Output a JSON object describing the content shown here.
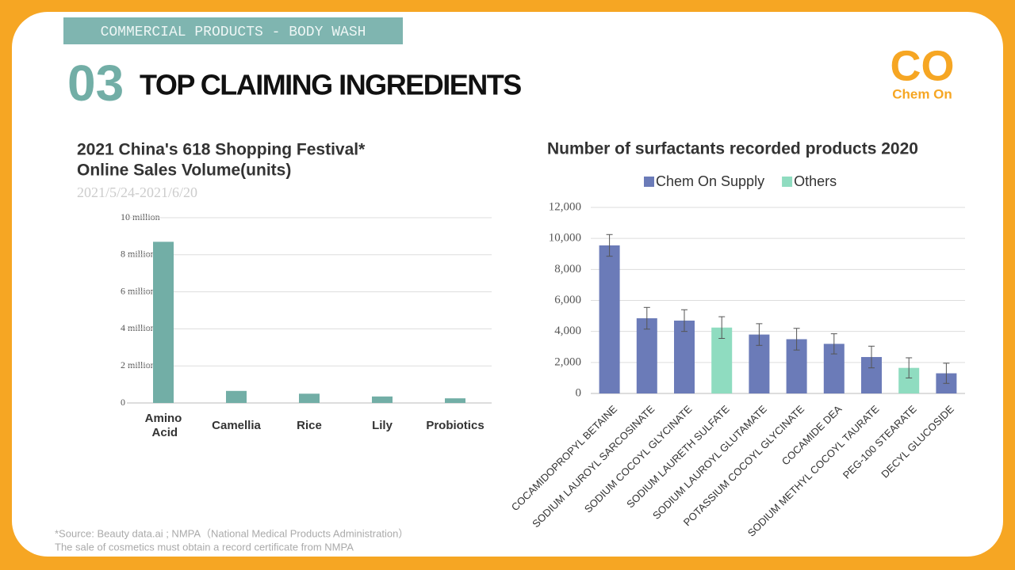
{
  "header": {
    "tag": "COMMERCIAL PRODUCTS - BODY WASH",
    "number": "03",
    "title": "TOP CLAIMING INGREDIENTS"
  },
  "logo": {
    "mark": "CO",
    "name": "Chem On"
  },
  "chart_data": [
    {
      "type": "bar",
      "title": [
        "2021 China's 618 Shopping Festival*",
        "Online Sales Volume(units)"
      ],
      "subtitle": "2021/5/24-2021/6/20",
      "categories": [
        "Amino Acid",
        "Camellia",
        "Rice",
        "Lily",
        "Probiotics"
      ],
      "values": [
        8700000,
        650000,
        500000,
        350000,
        250000
      ],
      "color": "#72aea6",
      "ylim": [
        0,
        10000000
      ],
      "yticks": [
        0,
        {
          "value": 2000000,
          "label": "2 million"
        },
        {
          "value": 4000000,
          "label": "4 million"
        },
        {
          "value": 6000000,
          "label": "6 million"
        },
        {
          "value": 8000000,
          "label": "8 million"
        },
        {
          "value": 10000000,
          "label": "10 million"
        }
      ],
      "grid": true
    },
    {
      "type": "bar",
      "title": [
        "Number of surfactants recorded products 2020"
      ],
      "categories": [
        "COCAMIDOPROPYL BETAINE",
        "SODIUM LAUROYL SARCOSINATE",
        "SODIUM COCOYL GLYCINATE",
        "SODIUM LAURETH SULFATE",
        "SODIUM LAUROYL GLUTAMATE",
        "POTASSIUM COCOYL GLYCINATE",
        "COCAMIDE DEA",
        "SODIUM METHYL COCOYL TAURATE",
        "PEG-100 STEARATE",
        "DECYL GLUCOSIDE"
      ],
      "series": [
        {
          "name": "Chem On Supply",
          "color": "#6b7bb8",
          "values": [
            9550,
            4850,
            4700,
            null,
            3800,
            3500,
            3200,
            2350,
            null,
            1300
          ],
          "errors": [
            700,
            700,
            700,
            null,
            700,
            700,
            650,
            700,
            null,
            650
          ]
        },
        {
          "name": "Others",
          "color": "#8fdcc0",
          "values": [
            null,
            null,
            null,
            4250,
            null,
            null,
            null,
            null,
            1650,
            null
          ],
          "errors": [
            null,
            null,
            null,
            700,
            null,
            null,
            null,
            null,
            650,
            null
          ]
        }
      ],
      "ylim": [
        0,
        12000
      ],
      "yticks": [
        0,
        {
          "value": 2000,
          "label": "2,000"
        },
        {
          "value": 4000,
          "label": "4,000"
        },
        {
          "value": 6000,
          "label": "6,000"
        },
        {
          "value": 8000,
          "label": "8,000"
        },
        {
          "value": 10000,
          "label": "10,000"
        },
        {
          "value": 12000,
          "label": "12,000"
        }
      ],
      "grid": true,
      "legend": "top"
    }
  ],
  "footer": [
    "*Source: Beauty data.ai ; NMPA（National Medical Products Administration）",
    "The sale of cosmetics must obtain a record certificate from NMPA"
  ]
}
